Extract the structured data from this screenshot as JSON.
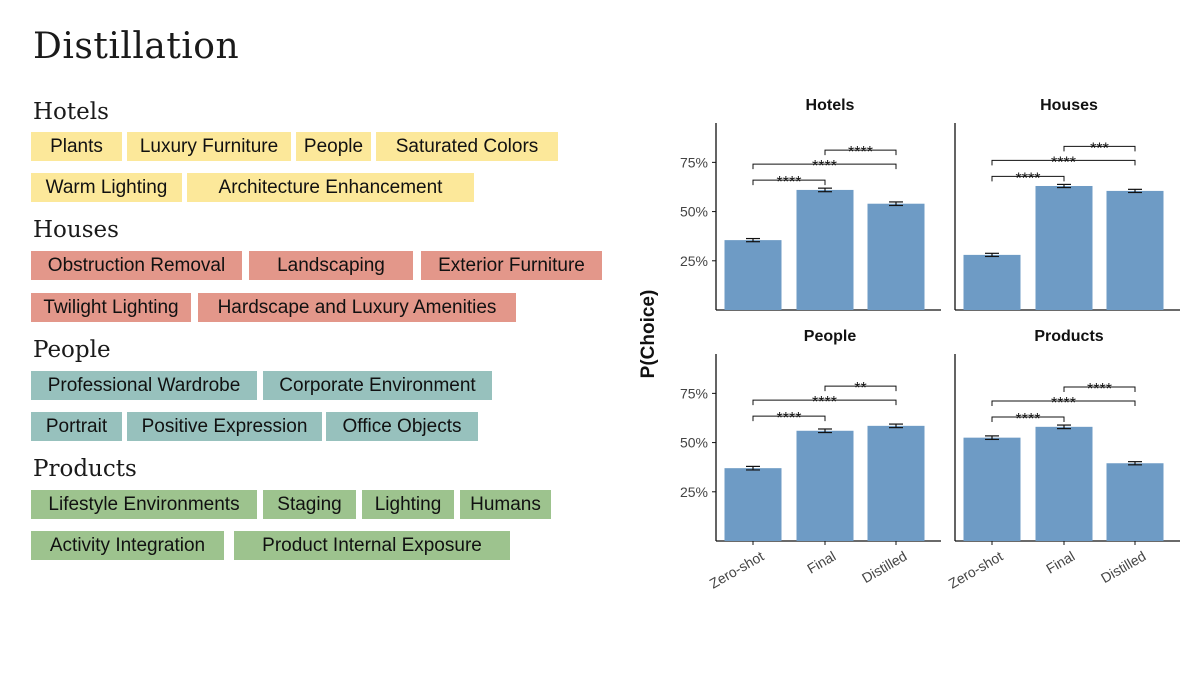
{
  "title": "Distillation",
  "categories": [
    {
      "name": "Hotels",
      "color": "#fce89a",
      "rows": [
        [
          "Plants",
          "Luxury Furniture",
          "People",
          "Saturated Colors"
        ],
        [
          "Warm Lighting",
          "Architecture Enhancement"
        ]
      ]
    },
    {
      "name": "Houses",
      "color": "#e3978a",
      "rows": [
        [
          "Obstruction Removal",
          "Landscaping",
          "Exterior Furniture"
        ],
        [
          "Twilight Lighting",
          "Hardscape and Luxury Amenities"
        ]
      ]
    },
    {
      "name": "People",
      "color": "#97c1bd",
      "rows": [
        [
          "Professional Wardrobe",
          "Corporate Environment"
        ],
        [
          "Portrait",
          "Positive Expression",
          "Office Objects"
        ]
      ]
    },
    {
      "name": "Products",
      "color": "#9dc38e",
      "rows": [
        [
          "Lifestyle Environments",
          "Staging",
          "Lighting",
          "Humans"
        ],
        [
          "Activity Integration",
          "Product Internal Exposure"
        ]
      ]
    }
  ],
  "chart_data": {
    "type": "bar",
    "ylabel": "P(Choice)",
    "categories": [
      "Zero-shot",
      "Final",
      "Distilled"
    ],
    "y_ticks": [
      "25%",
      "50%",
      "75%"
    ],
    "y_tick_values": [
      25,
      50,
      75
    ],
    "bar_color": "#6e9bc5",
    "panels": [
      {
        "title": "Hotels",
        "values": [
          35.5,
          61,
          54
        ],
        "err": [
          0.8,
          0.9,
          0.9
        ],
        "brackets": [
          {
            "from": 0,
            "to": 1,
            "label": "****"
          },
          {
            "from": 0,
            "to": 2,
            "label": "****"
          },
          {
            "from": 1,
            "to": 2,
            "label": "****"
          }
        ]
      },
      {
        "title": "Houses",
        "values": [
          28,
          63,
          60.5
        ],
        "err": [
          0.8,
          0.8,
          0.8
        ],
        "brackets": [
          {
            "from": 0,
            "to": 1,
            "label": "****"
          },
          {
            "from": 0,
            "to": 2,
            "label": "****"
          },
          {
            "from": 1,
            "to": 2,
            "label": "***"
          }
        ]
      },
      {
        "title": "People",
        "values": [
          37,
          56,
          58.5
        ],
        "err": [
          0.9,
          0.9,
          0.9
        ],
        "brackets": [
          {
            "from": 0,
            "to": 1,
            "label": "****"
          },
          {
            "from": 0,
            "to": 2,
            "label": "****"
          },
          {
            "from": 1,
            "to": 2,
            "label": "**"
          }
        ]
      },
      {
        "title": "Products",
        "values": [
          52.5,
          58,
          39.5
        ],
        "err": [
          0.9,
          0.9,
          0.8
        ],
        "brackets": [
          {
            "from": 0,
            "to": 1,
            "label": "****"
          },
          {
            "from": 0,
            "to": 2,
            "label": "****"
          },
          {
            "from": 1,
            "to": 2,
            "label": "****"
          }
        ]
      }
    ]
  }
}
